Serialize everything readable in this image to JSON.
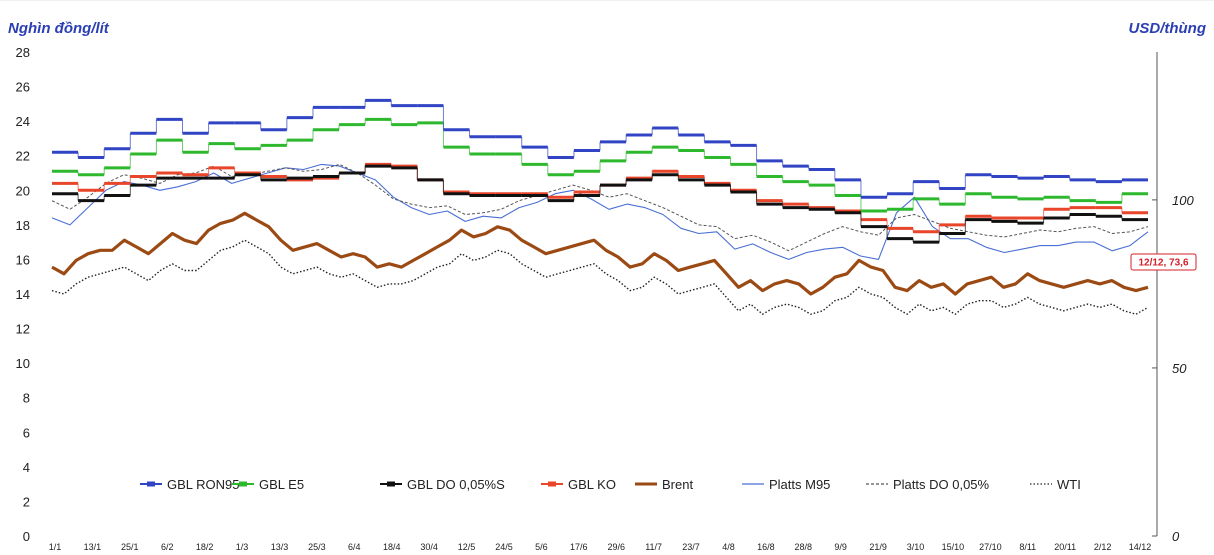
{
  "chart_data": {
    "type": "line",
    "left_axis_label": "Nghìn đồng/lít",
    "right_axis_label": "USD/thùng",
    "y_left": {
      "ticks": [
        "0",
        "2",
        "4",
        "6",
        "8",
        "10",
        "12",
        "14",
        "16",
        "18",
        "20",
        "22",
        "24",
        "26",
        "28"
      ],
      "range": [
        0,
        28
      ]
    },
    "y_right": {
      "ticks": [
        "0",
        "50",
        "100"
      ],
      "range": [
        0,
        144
      ]
    },
    "x_ticks": [
      "1/1",
      "13/1",
      "25/1",
      "6/2",
      "18/2",
      "1/3",
      "13/3",
      "25/3",
      "6/4",
      "18/4",
      "30/4",
      "12/5",
      "24/5",
      "5/6",
      "17/6",
      "29/6",
      "11/7",
      "23/7",
      "4/8",
      "16/8",
      "28/8",
      "9/9",
      "21/9",
      "3/10",
      "15/10",
      "27/10",
      "8/11",
      "20/11",
      "2/12",
      "14/12"
    ],
    "callout": "12/12, 73,6",
    "series": [
      {
        "name": "GBL RON95",
        "axis": "left",
        "color": "#3044c4",
        "style": "step",
        "values": [
          22.2,
          21.9,
          22.4,
          23.3,
          24.1,
          23.3,
          23.9,
          23.9,
          23.5,
          24.2,
          24.8,
          24.8,
          25.2,
          24.9,
          24.9,
          23.5,
          23.1,
          23.1,
          22.5,
          21.9,
          22.3,
          22.8,
          23.2,
          23.6,
          23.2,
          22.8,
          22.6,
          21.7,
          21.4,
          21.2,
          20.6,
          19.6,
          19.8,
          20.5,
          20.1,
          20.9,
          20.8,
          20.7,
          20.8,
          20.6,
          20.5,
          20.6
        ]
      },
      {
        "name": "GBL E5",
        "axis": "left",
        "color": "#2eb82e",
        "style": "step",
        "values": [
          21.1,
          20.9,
          21.3,
          22.1,
          22.9,
          22.2,
          22.7,
          22.4,
          22.6,
          22.9,
          23.5,
          23.8,
          24.1,
          23.8,
          23.9,
          22.5,
          22.1,
          22.1,
          21.5,
          20.9,
          21.1,
          21.7,
          22.2,
          22.5,
          22.3,
          21.9,
          21.5,
          20.8,
          20.5,
          20.3,
          19.7,
          18.8,
          18.9,
          19.5,
          19.2,
          19.8,
          19.6,
          19.5,
          19.6,
          19.4,
          19.3,
          19.8
        ]
      },
      {
        "name": "GBL DO 0,05%S",
        "axis": "left",
        "color": "#111111",
        "style": "step",
        "values": [
          19.8,
          19.4,
          19.7,
          20.3,
          20.7,
          20.7,
          20.7,
          20.9,
          20.6,
          20.7,
          20.8,
          21.0,
          21.4,
          21.3,
          20.6,
          19.8,
          19.7,
          19.7,
          19.7,
          19.4,
          19.7,
          20.3,
          20.6,
          20.9,
          20.6,
          20.3,
          19.9,
          19.2,
          19.0,
          18.9,
          18.7,
          17.9,
          17.2,
          17.0,
          17.5,
          18.3,
          18.2,
          18.1,
          18.4,
          18.6,
          18.5,
          18.3
        ]
      },
      {
        "name": "GBL KO",
        "axis": "left",
        "color": "#e8452a",
        "style": "step",
        "values": [
          20.4,
          20.0,
          20.4,
          20.8,
          21.0,
          20.9,
          21.3,
          21.0,
          20.8,
          20.6,
          20.7,
          21.0,
          21.5,
          21.4,
          20.6,
          19.9,
          19.8,
          19.8,
          19.8,
          19.6,
          19.9,
          20.3,
          20.7,
          21.1,
          20.8,
          20.4,
          20.0,
          19.4,
          19.2,
          19.0,
          18.8,
          18.3,
          17.8,
          17.6,
          18.0,
          18.5,
          18.4,
          18.4,
          18.9,
          19.0,
          19.0,
          18.7
        ]
      },
      {
        "name": "Brent",
        "axis": "right",
        "color": "#9c4a14",
        "style": "solid",
        "values": [
          80,
          78,
          82,
          84,
          85,
          85,
          88,
          86,
          84,
          87,
          90,
          88,
          87,
          91,
          93,
          94,
          96,
          94,
          92,
          88,
          85,
          86,
          87,
          85,
          83,
          84,
          83,
          80,
          81,
          80,
          82,
          84,
          86,
          88,
          91,
          89,
          90,
          92,
          91,
          88,
          86,
          84,
          85,
          86,
          87,
          88,
          85,
          83,
          80,
          81,
          84,
          82,
          79,
          80,
          81,
          82,
          78,
          74,
          76,
          73,
          75,
          76,
          75,
          72,
          74,
          77,
          78,
          82,
          80,
          79,
          74,
          73,
          76,
          74,
          75,
          72,
          75,
          76,
          77,
          74,
          75,
          78,
          76,
          75,
          74,
          75,
          76,
          75,
          76,
          74,
          73,
          74
        ]
      },
      {
        "name": "Platts M95",
        "axis": "left",
        "color": "#4a6fd4",
        "style": "solid",
        "values": [
          18.4,
          18.0,
          19.0,
          20.0,
          20.5,
          20.3,
          20.0,
          20.2,
          20.5,
          21.0,
          20.4,
          20.7,
          21.0,
          21.3,
          21.2,
          21.5,
          21.4,
          21.0,
          20.6,
          19.6,
          19.0,
          18.6,
          18.8,
          18.2,
          18.5,
          18.4,
          19.0,
          19.3,
          19.8,
          20.0,
          19.5,
          18.9,
          19.2,
          19.0,
          18.6,
          17.8,
          17.5,
          17.6,
          16.6,
          16.9,
          16.4,
          16.0,
          16.4,
          16.6,
          16.7,
          16.2,
          16.0,
          18.7,
          19.6,
          17.9,
          17.2,
          17.2,
          16.7,
          16.4,
          16.6,
          16.8,
          16.8,
          17.0,
          17.0,
          16.5,
          16.8,
          17.6
        ]
      },
      {
        "name": "Platts DO 0,05%",
        "axis": "left",
        "color": "#555555",
        "style": "dashed",
        "values": [
          19.4,
          18.9,
          19.6,
          20.4,
          20.9,
          20.7,
          20.4,
          20.9,
          21.0,
          21.4,
          20.8,
          20.9,
          21.1,
          21.3,
          21.1,
          21.2,
          21.5,
          21.0,
          20.3,
          19.5,
          19.2,
          19.0,
          19.1,
          18.6,
          18.7,
          18.9,
          19.4,
          19.7,
          20.0,
          20.3,
          20.0,
          19.6,
          19.8,
          19.4,
          19.0,
          18.5,
          18.0,
          17.9,
          17.2,
          17.4,
          17.0,
          16.5,
          17.0,
          17.5,
          17.9,
          17.6,
          17.4,
          18.4,
          18.6,
          18.2,
          17.8,
          17.6,
          17.4,
          17.3,
          17.5,
          17.7,
          17.6,
          17.8,
          17.9,
          17.5,
          17.6,
          17.9
        ]
      },
      {
        "name": "WTI",
        "axis": "right",
        "color": "#222222",
        "style": "dotted",
        "values": [
          73,
          72,
          75,
          77,
          78,
          79,
          80,
          78,
          76,
          79,
          81,
          79,
          79,
          82,
          85,
          86,
          88,
          86,
          84,
          80,
          78,
          79,
          80,
          78,
          77,
          78,
          76,
          74,
          75,
          75,
          76,
          78,
          80,
          81,
          84,
          82,
          83,
          85,
          84,
          81,
          79,
          77,
          78,
          79,
          80,
          81,
          78,
          76,
          73,
          74,
          77,
          75,
          72,
          73,
          74,
          75,
          71,
          67,
          69,
          66,
          68,
          69,
          68,
          66,
          67,
          70,
          71,
          74,
          72,
          71,
          68,
          66,
          69,
          67,
          68,
          66,
          69,
          70,
          70,
          68,
          69,
          71,
          69,
          68,
          67,
          68,
          69,
          68,
          69,
          67,
          66,
          68
        ]
      }
    ]
  }
}
